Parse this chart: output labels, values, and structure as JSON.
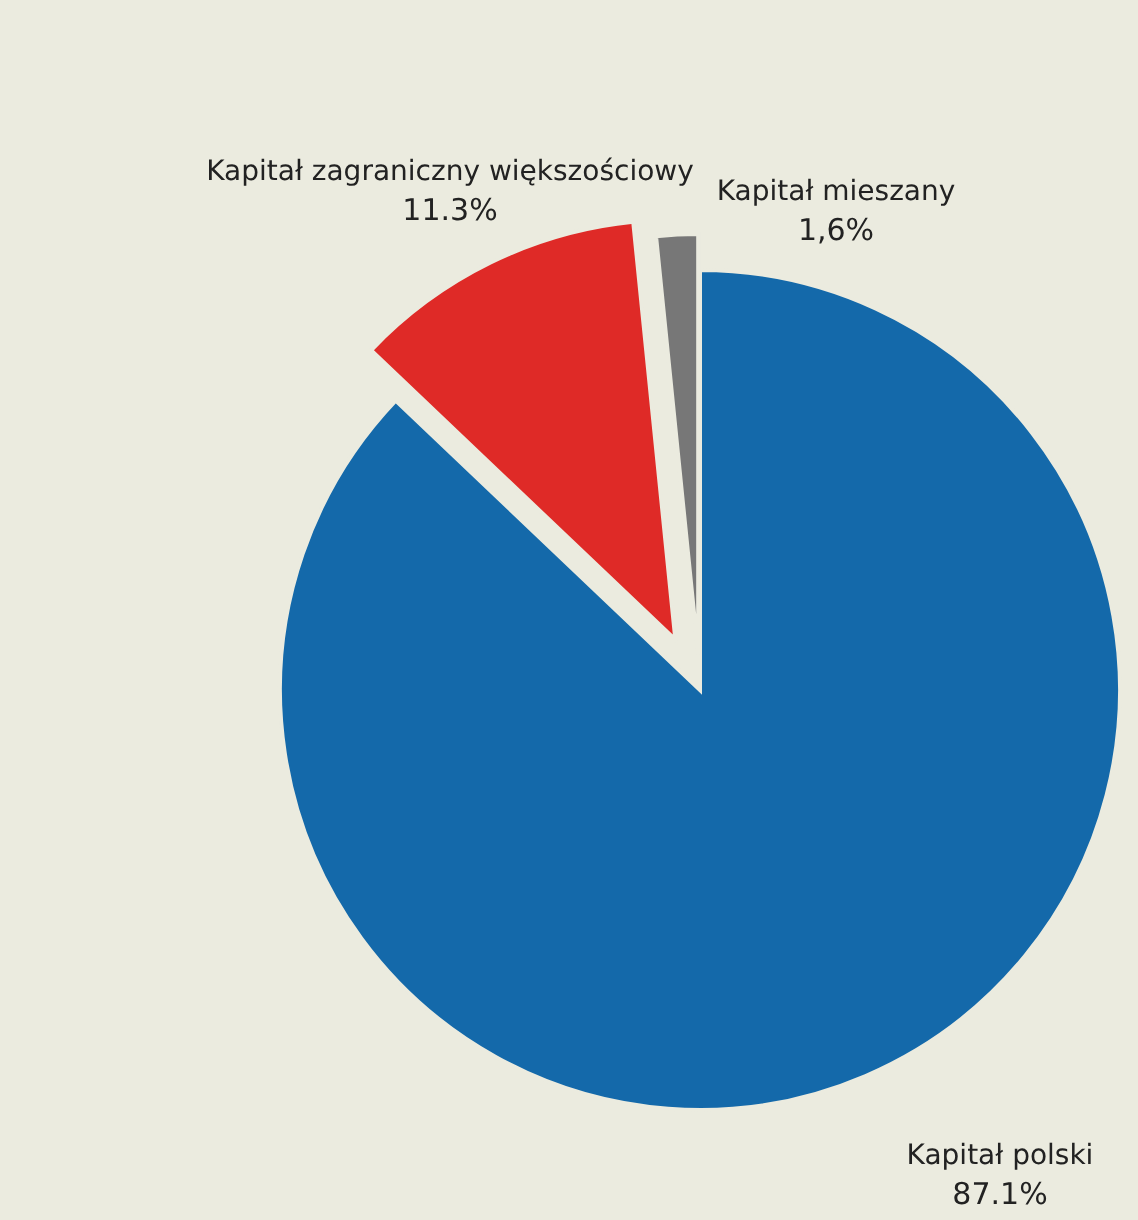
{
  "chart_data": {
    "type": "pie",
    "categories": [
      "Kapitał polski",
      "Kapitał zagraniczny większościowy",
      "Kapitał mieszany"
    ],
    "values": [
      87.1,
      11.3,
      1.6
    ],
    "colors": [
      "#1469aa",
      "#df2a27",
      "#777777"
    ],
    "value_labels": [
      "87.1%",
      "11.3%",
      "1,6%"
    ]
  }
}
